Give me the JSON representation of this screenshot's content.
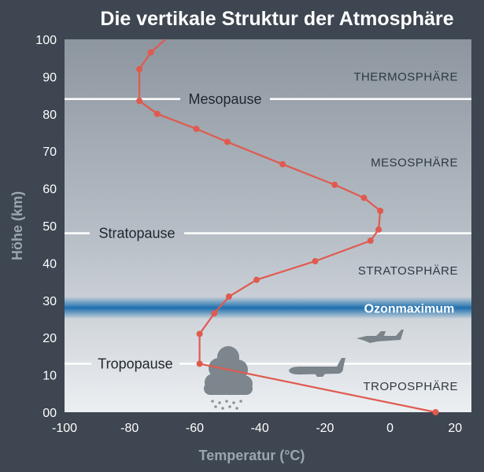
{
  "chart_data": {
    "type": "line",
    "title": "Die vertikale Struktur der Atmosphäre",
    "xlabel": "Temperatur (°C)",
    "ylabel": "Höhe (km)",
    "xlim": [
      -100,
      25
    ],
    "ylim": [
      0,
      100
    ],
    "x_ticks": [
      "-100",
      "-80",
      "-60",
      "-40",
      "-20",
      "0",
      "20"
    ],
    "y_ticks": [
      "00",
      "10",
      "20",
      "30",
      "40",
      "50",
      "60",
      "70",
      "80",
      "90",
      "100"
    ],
    "series": [
      {
        "points": [
          {
            "x": 14,
            "y": 0
          },
          {
            "x": -58.5,
            "y": 13
          },
          {
            "x": -58.5,
            "y": 21
          },
          {
            "x": -54,
            "y": 26.5
          },
          {
            "x": -49.5,
            "y": 31
          },
          {
            "x": -41,
            "y": 35.5
          },
          {
            "x": -23,
            "y": 40.5
          },
          {
            "x": -6,
            "y": 46
          },
          {
            "x": -3.5,
            "y": 49
          },
          {
            "x": -3,
            "y": 54
          },
          {
            "x": -8,
            "y": 57.5
          },
          {
            "x": -17,
            "y": 61
          },
          {
            "x": -33,
            "y": 66.5
          },
          {
            "x": -50,
            "y": 72.5
          },
          {
            "x": -59.5,
            "y": 76
          },
          {
            "x": -71.5,
            "y": 80
          },
          {
            "x": -77,
            "y": 83.5
          },
          {
            "x": -77,
            "y": 92
          },
          {
            "x": -73.5,
            "y": 96.5
          },
          {
            "x": -69,
            "y": 100
          }
        ],
        "color": "#e05a4f"
      }
    ],
    "boundaries": [
      {
        "label": "Tropopause",
        "y": 13
      },
      {
        "label": "Stratopause",
        "y": 48
      },
      {
        "label": "Mesopause",
        "y": 84
      }
    ],
    "layers": [
      {
        "label": "TROPOSPHÄRE",
        "y": 7
      },
      {
        "label": "STRATOSPHÄRE",
        "y": 38
      },
      {
        "label": "MESOSPHÄRE",
        "y": 67
      },
      {
        "label": "THERMOSPHÄRE",
        "y": 90
      }
    ],
    "ozone": {
      "label": "Ozonmaximum",
      "y": 28,
      "band": [
        25,
        31
      ]
    },
    "grid": false,
    "colors": {
      "line": "#e05a4f",
      "ozone": "#1f77b4",
      "frame": "#3d4651"
    }
  }
}
